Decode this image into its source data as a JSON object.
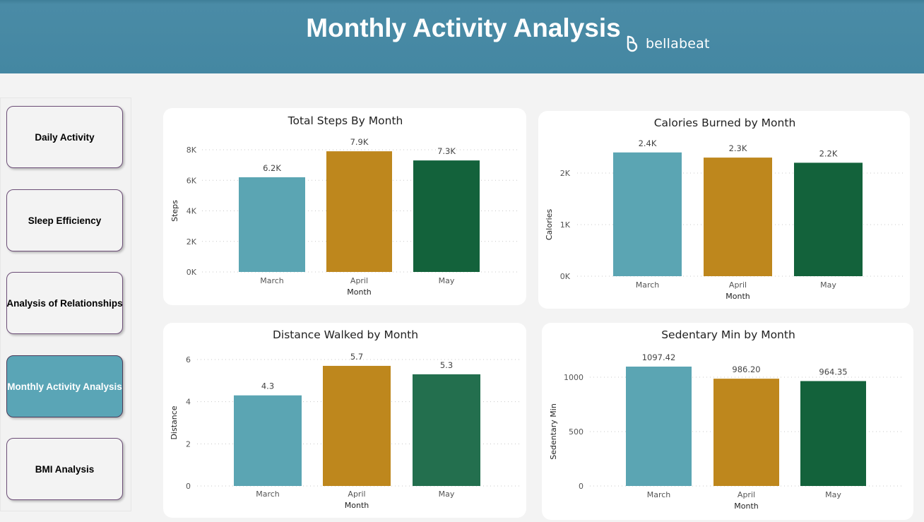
{
  "header": {
    "title": "Monthly Activity Analysis",
    "logo_text": "bellabeat"
  },
  "sidebar": {
    "items": [
      {
        "label": "Daily Activity",
        "active": false
      },
      {
        "label": "Sleep Efficiency",
        "active": false
      },
      {
        "label": "Analysis of Relationships",
        "active": false
      },
      {
        "label": "Monthly Activity Analysis",
        "active": true
      },
      {
        "label": "BMI Analysis",
        "active": false
      }
    ]
  },
  "colors": {
    "march": "#5ba5b3",
    "april": "#be871d",
    "may": "#13623b",
    "may_light": "#236f4e"
  },
  "chart_data": [
    {
      "id": "steps",
      "type": "bar",
      "title": "Total Steps By Month",
      "xlabel": "Month",
      "ylabel": "Steps",
      "categories": [
        "March",
        "April",
        "May"
      ],
      "values": [
        6200,
        7900,
        7300
      ],
      "data_labels": [
        "6.2K",
        "7.9K",
        "7.3K"
      ],
      "ylim": [
        0,
        8000
      ],
      "yticks": [
        0,
        2000,
        4000,
        6000,
        8000
      ],
      "ytick_labels": [
        "0K",
        "2K",
        "4K",
        "6K",
        "8K"
      ],
      "grid": true
    },
    {
      "id": "calories",
      "type": "bar",
      "title": "Calories Burned by Month",
      "xlabel": "Month",
      "ylabel": "Calories",
      "categories": [
        "March",
        "April",
        "May"
      ],
      "values": [
        2400,
        2300,
        2200
      ],
      "data_labels": [
        "2.4K",
        "2.3K",
        "2.2K"
      ],
      "ylim": [
        0,
        2000
      ],
      "yticks": [
        0,
        1000,
        2000
      ],
      "ytick_labels": [
        "0K",
        "1K",
        "2K"
      ],
      "grid": true
    },
    {
      "id": "distance",
      "type": "bar",
      "title": "Distance Walked by Month",
      "xlabel": "Month",
      "ylabel": "Distance",
      "categories": [
        "March",
        "April",
        "May"
      ],
      "values": [
        4.3,
        5.7,
        5.3
      ],
      "data_labels": [
        "4.3",
        "5.7",
        "5.3"
      ],
      "ylim": [
        0,
        6
      ],
      "yticks": [
        0,
        2,
        4,
        6
      ],
      "ytick_labels": [
        "0",
        "2",
        "4",
        "6"
      ],
      "grid": true
    },
    {
      "id": "sedentary",
      "type": "bar",
      "title": "Sedentary Min by Month",
      "xlabel": "Month",
      "ylabel": "Sedentary Min",
      "categories": [
        "March",
        "April",
        "May"
      ],
      "values": [
        1097.42,
        986.2,
        964.35
      ],
      "data_labels": [
        "1097.42",
        "986.20",
        "964.35"
      ],
      "ylim": [
        0,
        1000
      ],
      "yticks": [
        0,
        500,
        1000
      ],
      "ytick_labels": [
        "0",
        "500",
        "1000"
      ],
      "grid": true
    }
  ]
}
